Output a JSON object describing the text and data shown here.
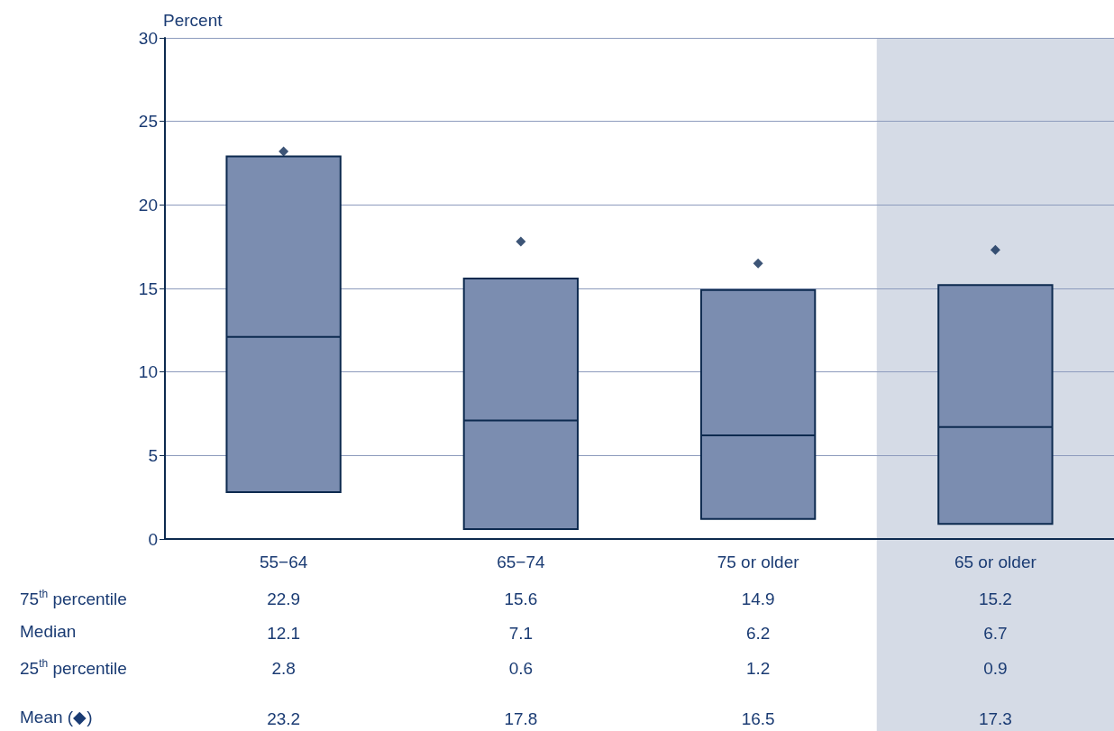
{
  "chart_data": {
    "type": "box",
    "ylabel": "Percent",
    "categories": [
      "55−64",
      "65−74",
      "75 or older",
      "65 or older"
    ],
    "series": [
      {
        "type": "box",
        "color": "#7b8db0",
        "boxes": [
          {
            "low": 2.8,
            "q1": 2.8,
            "median": 12.1,
            "q3": 22.9,
            "high": 22.9
          },
          {
            "low": 0.6,
            "q1": 0.6,
            "median": 7.1,
            "q3": 15.6,
            "high": 15.6
          },
          {
            "low": 1.2,
            "q1": 1.2,
            "median": 6.2,
            "q3": 14.9,
            "high": 14.9
          },
          {
            "low": 0.9,
            "q1": 0.9,
            "median": 6.7,
            "q3": 15.2,
            "high": 15.2
          }
        ]
      },
      {
        "type": "scatter",
        "color": "#0d2a55",
        "marker": "diamond",
        "x": [
          "55−64",
          "65−74",
          "75 or older",
          "65 or older"
        ],
        "values": [
          23.2,
          17.8,
          16.5,
          17.3
        ]
      }
    ],
    "bands": [
      {
        "axis": "x",
        "from": "65 or older",
        "to": "65 or older",
        "color": "#d5dbe6"
      }
    ],
    "ylim": [
      0,
      30
    ],
    "yticks": [
      0,
      5,
      10,
      15,
      20,
      25,
      30
    ],
    "grid": "y",
    "data_labels": true,
    "annotations": [
      "75$^{th}$ percentile",
      "22.9",
      "15.6",
      "14.9",
      "15.2",
      "Median",
      "12.1",
      "7.1",
      "6.2",
      "6.7",
      "25$^{th}$ percentile",
      "2.8",
      "0.6",
      "1.2",
      "0.9",
      "Mean (◆)"
    ]
  }
}
